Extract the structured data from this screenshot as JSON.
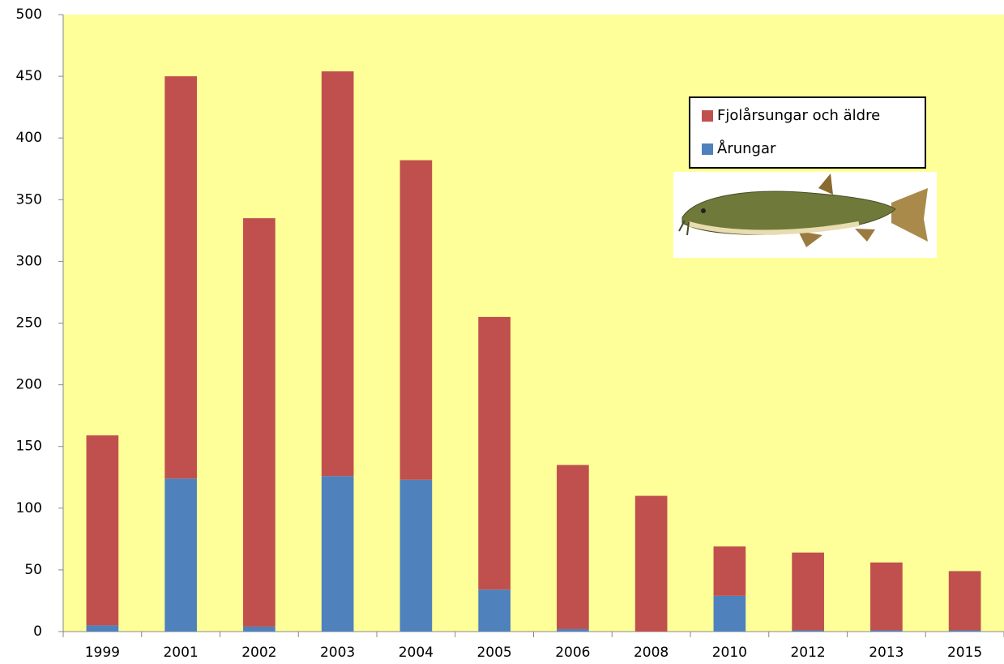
{
  "chart_data": {
    "type": "stacked-bar",
    "categories": [
      "1999",
      "2001",
      "2002",
      "2003",
      "2004",
      "2005",
      "2006",
      "2008",
      "2010",
      "2012",
      "2013",
      "2015"
    ],
    "series": [
      {
        "name": "Årungar",
        "color": "#4f81bd",
        "values": [
          5,
          124,
          4,
          126,
          123,
          34,
          2,
          0,
          29,
          1,
          1,
          1
        ]
      },
      {
        "name": "Fjolårsungar och äldre",
        "color": "#c0504d",
        "values": [
          154,
          326,
          331,
          328,
          259,
          221,
          133,
          110,
          40,
          63,
          55,
          48
        ]
      }
    ],
    "ylim": [
      0,
      500
    ],
    "yticks": [
      0,
      50,
      100,
      150,
      200,
      250,
      300,
      350,
      400,
      450,
      500
    ],
    "plot_background": "#ffff99",
    "legend_position": "upper right"
  }
}
